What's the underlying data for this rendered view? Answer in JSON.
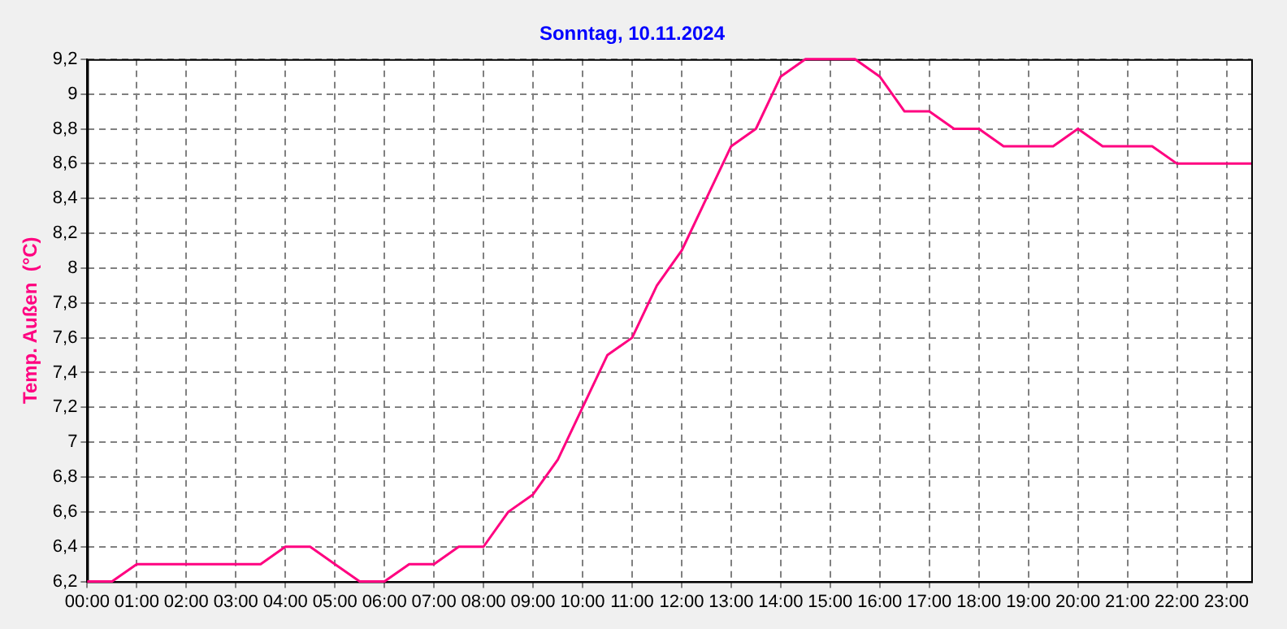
{
  "chart_data": {
    "type": "line",
    "title": "Sonntag, 10.11.2024",
    "ylabel": "Temp. Außen  (°C)",
    "x": [
      0,
      0.5,
      1,
      1.5,
      2,
      2.5,
      3,
      3.5,
      4,
      4.5,
      5,
      5.5,
      6,
      6.5,
      7,
      7.5,
      8,
      8.5,
      9,
      9.5,
      10,
      10.5,
      11,
      11.5,
      12,
      12.5,
      13,
      13.5,
      14,
      14.5,
      15,
      15.5,
      16,
      16.5,
      17,
      17.5,
      18,
      18.5,
      19,
      19.5,
      20,
      20.5,
      21,
      21.5,
      22,
      22.5,
      23,
      23.5
    ],
    "series": [
      {
        "color": "#ff0080",
        "values": [
          6.2,
          6.2,
          6.3,
          6.3,
          6.3,
          6.3,
          6.3,
          6.3,
          6.4,
          6.4,
          6.3,
          6.2,
          6.2,
          6.3,
          6.3,
          6.4,
          6.4,
          6.6,
          6.7,
          6.9,
          7.2,
          7.5,
          7.6,
          7.9,
          8.1,
          8.4,
          8.7,
          8.8,
          9.1,
          9.2,
          9.2,
          9.2,
          9.1,
          8.9,
          8.9,
          8.8,
          8.8,
          8.7,
          8.7,
          8.7,
          8.8,
          8.7,
          8.7,
          8.7,
          8.6,
          8.6,
          8.6,
          8.6
        ]
      }
    ],
    "xlim": [
      0,
      23.5
    ],
    "xticks": [
      {
        "value": 0,
        "label": "00:00"
      },
      {
        "value": 1,
        "label": "01:00"
      },
      {
        "value": 2,
        "label": "02:00"
      },
      {
        "value": 3,
        "label": "03:00"
      },
      {
        "value": 4,
        "label": "04:00"
      },
      {
        "value": 5,
        "label": "05:00"
      },
      {
        "value": 6,
        "label": "06:00"
      },
      {
        "value": 7,
        "label": "07:00"
      },
      {
        "value": 8,
        "label": "08:00"
      },
      {
        "value": 9,
        "label": "09:00"
      },
      {
        "value": 10,
        "label": "10:00"
      },
      {
        "value": 11,
        "label": "11:00"
      },
      {
        "value": 12,
        "label": "12:00"
      },
      {
        "value": 13,
        "label": "13:00"
      },
      {
        "value": 14,
        "label": "14:00"
      },
      {
        "value": 15,
        "label": "15:00"
      },
      {
        "value": 16,
        "label": "16:00"
      },
      {
        "value": 17,
        "label": "17:00"
      },
      {
        "value": 18,
        "label": "18:00"
      },
      {
        "value": 19,
        "label": "19:00"
      },
      {
        "value": 20,
        "label": "20:00"
      },
      {
        "value": 21,
        "label": "21:00"
      },
      {
        "value": 22,
        "label": "22:00"
      },
      {
        "value": 23,
        "label": "23:00"
      }
    ],
    "ylim": [
      6.2,
      9.2
    ],
    "yticks": [
      {
        "value": 6.2,
        "label": "6,2"
      },
      {
        "value": 6.4,
        "label": "6,4"
      },
      {
        "value": 6.6,
        "label": "6,6"
      },
      {
        "value": 6.8,
        "label": "6,8"
      },
      7,
      {
        "value": 7.2,
        "label": "7,2"
      },
      {
        "value": 7.4,
        "label": "7,4"
      },
      {
        "value": 7.6,
        "label": "7,6"
      },
      {
        "value": 7.8,
        "label": "7,8"
      },
      8,
      {
        "value": 8.2,
        "label": "8,2"
      },
      {
        "value": 8.4,
        "label": "8,4"
      },
      {
        "value": 8.6,
        "label": "8,6"
      },
      {
        "value": 8.8,
        "label": "8,8"
      },
      9,
      {
        "value": 9.2,
        "label": "9,2"
      }
    ],
    "grid": true,
    "legend": false,
    "marker": "none",
    "line_style": "solid"
  }
}
